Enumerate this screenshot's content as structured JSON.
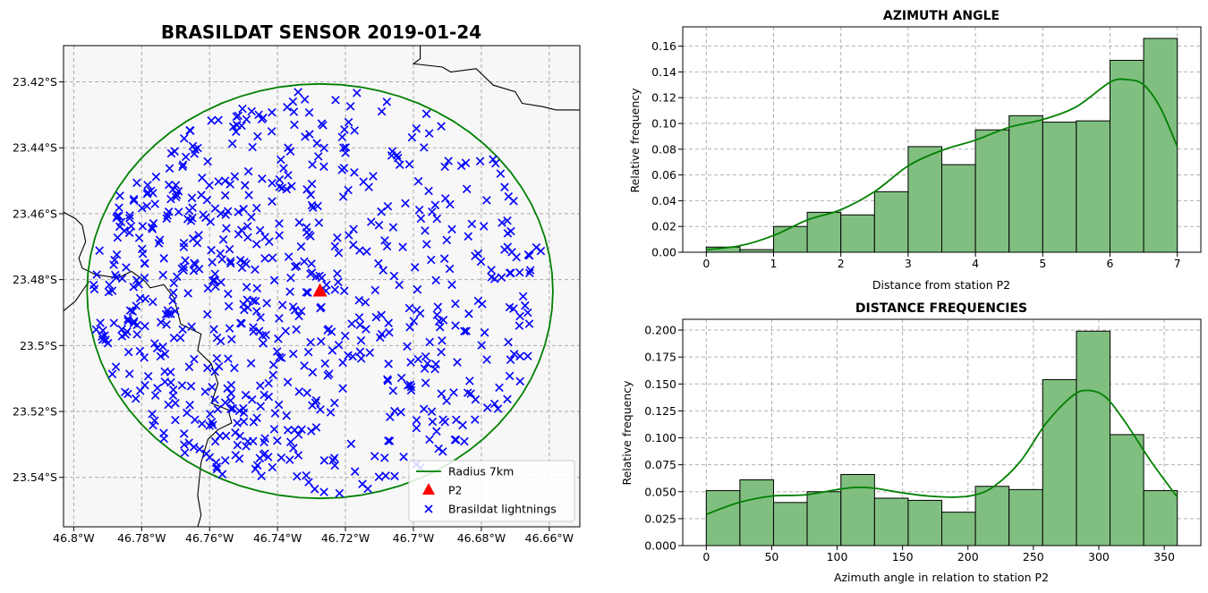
{
  "chart_data": [
    {
      "type": "scatter",
      "title": "BRASILDAT SENSOR 2019-01-24",
      "xlim": [
        -46.803,
        -46.651
      ],
      "ylim": [
        -23.555,
        -23.409
      ],
      "x_ticks": [
        -46.8,
        -46.78,
        -46.76,
        -46.74,
        -46.72,
        -46.7,
        -46.68,
        -46.66
      ],
      "x_tick_labels": [
        "46.8°W",
        "46.78°W",
        "46.76°W",
        "46.74°W",
        "46.72°W",
        "46.7°W",
        "46.68°W",
        "46.66°W"
      ],
      "y_ticks": [
        -23.42,
        -23.44,
        -23.46,
        -23.48,
        -23.5,
        -23.52,
        -23.54
      ],
      "y_tick_labels": [
        "23.42°S",
        "23.44°S",
        "23.46°S",
        "23.48°S",
        "23.5°S",
        "23.52°S",
        "23.54°S"
      ],
      "grid": true,
      "legend_position": "bottom-right",
      "legend": [
        "Radius 7km",
        "P2",
        "Brasildat lightnings"
      ],
      "station": {
        "name": "P2",
        "lon": -46.7275,
        "lat": -23.4835
      },
      "circle": {
        "label": "Radius 7km",
        "center_lon": -46.7275,
        "center_lat": -23.4835,
        "radius_km": 7
      },
      "colors": {
        "circle": "#008000",
        "station": "#ff0000",
        "points": "#0000ff",
        "background": "#f7f7f7",
        "coast": "#000000"
      },
      "point_count": 720
    },
    {
      "type": "bar",
      "title": "AZIMUTH ANGLE",
      "xlabel": "Distance from station P2",
      "ylabel": "Relative frequency",
      "bin_edges": [
        0,
        0.5,
        1,
        1.5,
        2,
        2.5,
        3,
        3.5,
        4,
        4.5,
        5,
        5.5,
        6,
        6.5,
        7
      ],
      "values": [
        0.004,
        0.002,
        0.02,
        0.031,
        0.029,
        0.047,
        0.082,
        0.068,
        0.095,
        0.106,
        0.101,
        0.102,
        0.149,
        0.166
      ],
      "kde_x": [
        0,
        0.5,
        1,
        1.5,
        2,
        2.5,
        3,
        3.5,
        4,
        4.5,
        5,
        5.5,
        6,
        6.25,
        6.5,
        6.75,
        7
      ],
      "kde_y": [
        0.002,
        0.005,
        0.013,
        0.025,
        0.033,
        0.047,
        0.067,
        0.079,
        0.087,
        0.097,
        0.103,
        0.113,
        0.132,
        0.134,
        0.13,
        0.112,
        0.082
      ],
      "xlim": [
        -0.35,
        7.35
      ],
      "ylim": [
        0,
        0.175
      ],
      "x_ticks": [
        0,
        1,
        2,
        3,
        4,
        5,
        6,
        7
      ],
      "x_tick_labels": [
        "0",
        "1",
        "2",
        "3",
        "4",
        "5",
        "6",
        "7"
      ],
      "y_ticks": [
        0,
        0.02,
        0.04,
        0.06,
        0.08,
        0.1,
        0.12,
        0.14,
        0.16
      ],
      "y_tick_labels": [
        "0.00",
        "0.02",
        "0.04",
        "0.06",
        "0.08",
        "0.10",
        "0.12",
        "0.14",
        "0.16"
      ],
      "grid": true,
      "colors": {
        "bar": "#80bf80",
        "edge": "#000000",
        "kde": "#008000"
      }
    },
    {
      "type": "bar",
      "title": "DISTANCE FREQUENCIES",
      "xlabel": "Azimuth angle in relation to station P2",
      "ylabel": "Relative frequency",
      "bin_edges": [
        0,
        25.7,
        51.4,
        77.1,
        102.9,
        128.6,
        154.3,
        180,
        205.7,
        231.4,
        257.1,
        282.9,
        308.6,
        334.3,
        360
      ],
      "values": [
        0.051,
        0.061,
        0.04,
        0.05,
        0.066,
        0.044,
        0.042,
        0.031,
        0.055,
        0.052,
        0.154,
        0.199,
        0.103,
        0.051
      ],
      "kde_x": [
        0,
        25,
        50,
        75,
        100,
        115,
        130,
        150,
        170,
        190,
        205,
        220,
        240,
        260,
        280,
        292,
        305,
        320,
        340,
        360
      ],
      "kde_y": [
        0.029,
        0.04,
        0.046,
        0.047,
        0.052,
        0.054,
        0.053,
        0.049,
        0.046,
        0.045,
        0.047,
        0.055,
        0.078,
        0.114,
        0.139,
        0.144,
        0.138,
        0.115,
        0.078,
        0.045
      ],
      "xlim": [
        -18,
        378
      ],
      "ylim": [
        0,
        0.21
      ],
      "x_ticks": [
        0,
        50,
        100,
        150,
        200,
        250,
        300,
        350
      ],
      "x_tick_labels": [
        "0",
        "50",
        "100",
        "150",
        "200",
        "250",
        "300",
        "350"
      ],
      "y_ticks": [
        0,
        0.025,
        0.05,
        0.075,
        0.1,
        0.125,
        0.15,
        0.175,
        0.2
      ],
      "y_tick_labels": [
        "0.000",
        "0.025",
        "0.050",
        "0.075",
        "0.100",
        "0.125",
        "0.150",
        "0.175",
        "0.200"
      ],
      "grid": true,
      "colors": {
        "bar": "#80bf80",
        "edge": "#000000",
        "kde": "#008000"
      }
    }
  ]
}
